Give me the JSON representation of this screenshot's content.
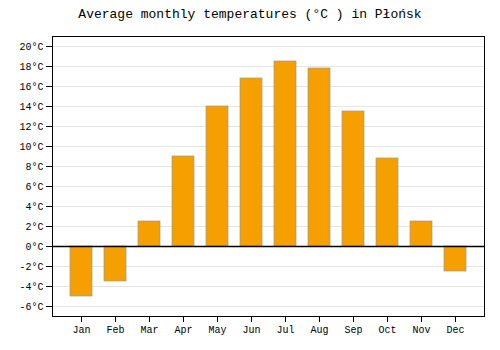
{
  "chart_data": {
    "type": "bar",
    "title": "Average monthly temperatures (°C ) in Płońsk",
    "categories": [
      "Jan",
      "Feb",
      "Mar",
      "Apr",
      "May",
      "Jun",
      "Jul",
      "Aug",
      "Sep",
      "Oct",
      "Nov",
      "Dec"
    ],
    "values": [
      -5.0,
      -3.5,
      2.5,
      9.0,
      14.0,
      16.8,
      18.5,
      17.8,
      13.5,
      8.8,
      2.5,
      -2.5
    ],
    "color": "#F5A000",
    "ylim": [
      -7,
      21
    ],
    "yticks": [
      {
        "value": -6,
        "label": "-6°C"
      },
      {
        "value": -4,
        "label": "-4°C"
      },
      {
        "value": -2,
        "label": "-2°C"
      },
      {
        "value": 0,
        "label": "0°C"
      },
      {
        "value": 2,
        "label": "2°C"
      },
      {
        "value": 4,
        "label": "4°C"
      },
      {
        "value": 6,
        "label": "6°C"
      },
      {
        "value": 8,
        "label": "8°C"
      },
      {
        "value": 10,
        "label": "10°C"
      },
      {
        "value": 12,
        "label": "12°C"
      },
      {
        "value": 14,
        "label": "14°C"
      },
      {
        "value": 16,
        "label": "16°C"
      },
      {
        "value": 18,
        "label": "18°C"
      },
      {
        "value": 20,
        "label": "20°C"
      }
    ],
    "grid": true
  }
}
